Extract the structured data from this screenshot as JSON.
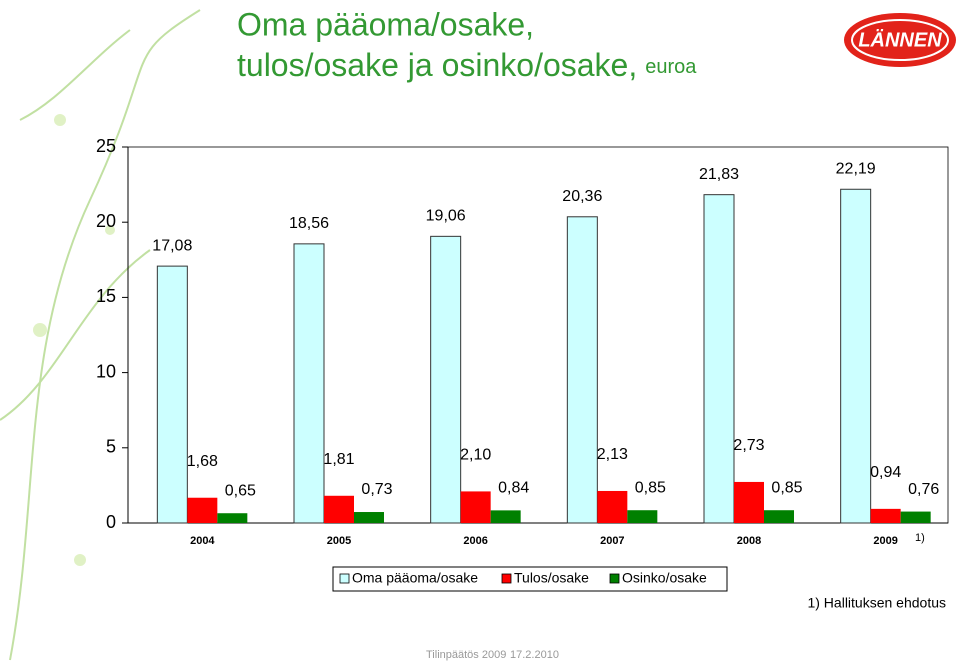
{
  "chart_data": {
    "type": "bar",
    "title": [
      "Oma pääoma/osake,",
      "tulos/osake ja osinko/osake,"
    ],
    "unit": "euroa",
    "categories": [
      "2004",
      "2005",
      "2006",
      "2007",
      "2008",
      "2009"
    ],
    "series": [
      {
        "name": "Oma pääoma/osake",
        "color": "#ccffff",
        "values": [
          17.08,
          18.56,
          19.06,
          20.36,
          21.83,
          22.19
        ],
        "value_labels": [
          "17,08",
          "18,56",
          "19,06",
          "20,36",
          "21,83",
          "22,19"
        ]
      },
      {
        "name": "Tulos/osake",
        "color": "#ff0000",
        "values": [
          1.68,
          1.81,
          2.1,
          2.13,
          2.73,
          0.94
        ],
        "value_labels": [
          "1,68",
          "1,81",
          "2,10",
          "2,13",
          "2,73",
          "0,94"
        ]
      },
      {
        "name": "Osinko/osake",
        "color": "#008000",
        "values": [
          0.65,
          0.73,
          0.84,
          0.85,
          0.85,
          0.76
        ],
        "value_labels": [
          "0,65",
          "0,73",
          "0,84",
          "0,85",
          "0,85",
          "0,76"
        ]
      }
    ],
    "ylim": [
      0,
      25
    ],
    "yticks": [
      0,
      5,
      10,
      15,
      20,
      25
    ],
    "grid": false,
    "legend": "bottom",
    "annotations": [
      "1)",
      "1) Hallituksen ehdotus"
    ]
  },
  "logo": {
    "text": "LÄNNEN"
  },
  "footer": [
    "Tilinpäätös 2009",
    "17.2.2010"
  ]
}
